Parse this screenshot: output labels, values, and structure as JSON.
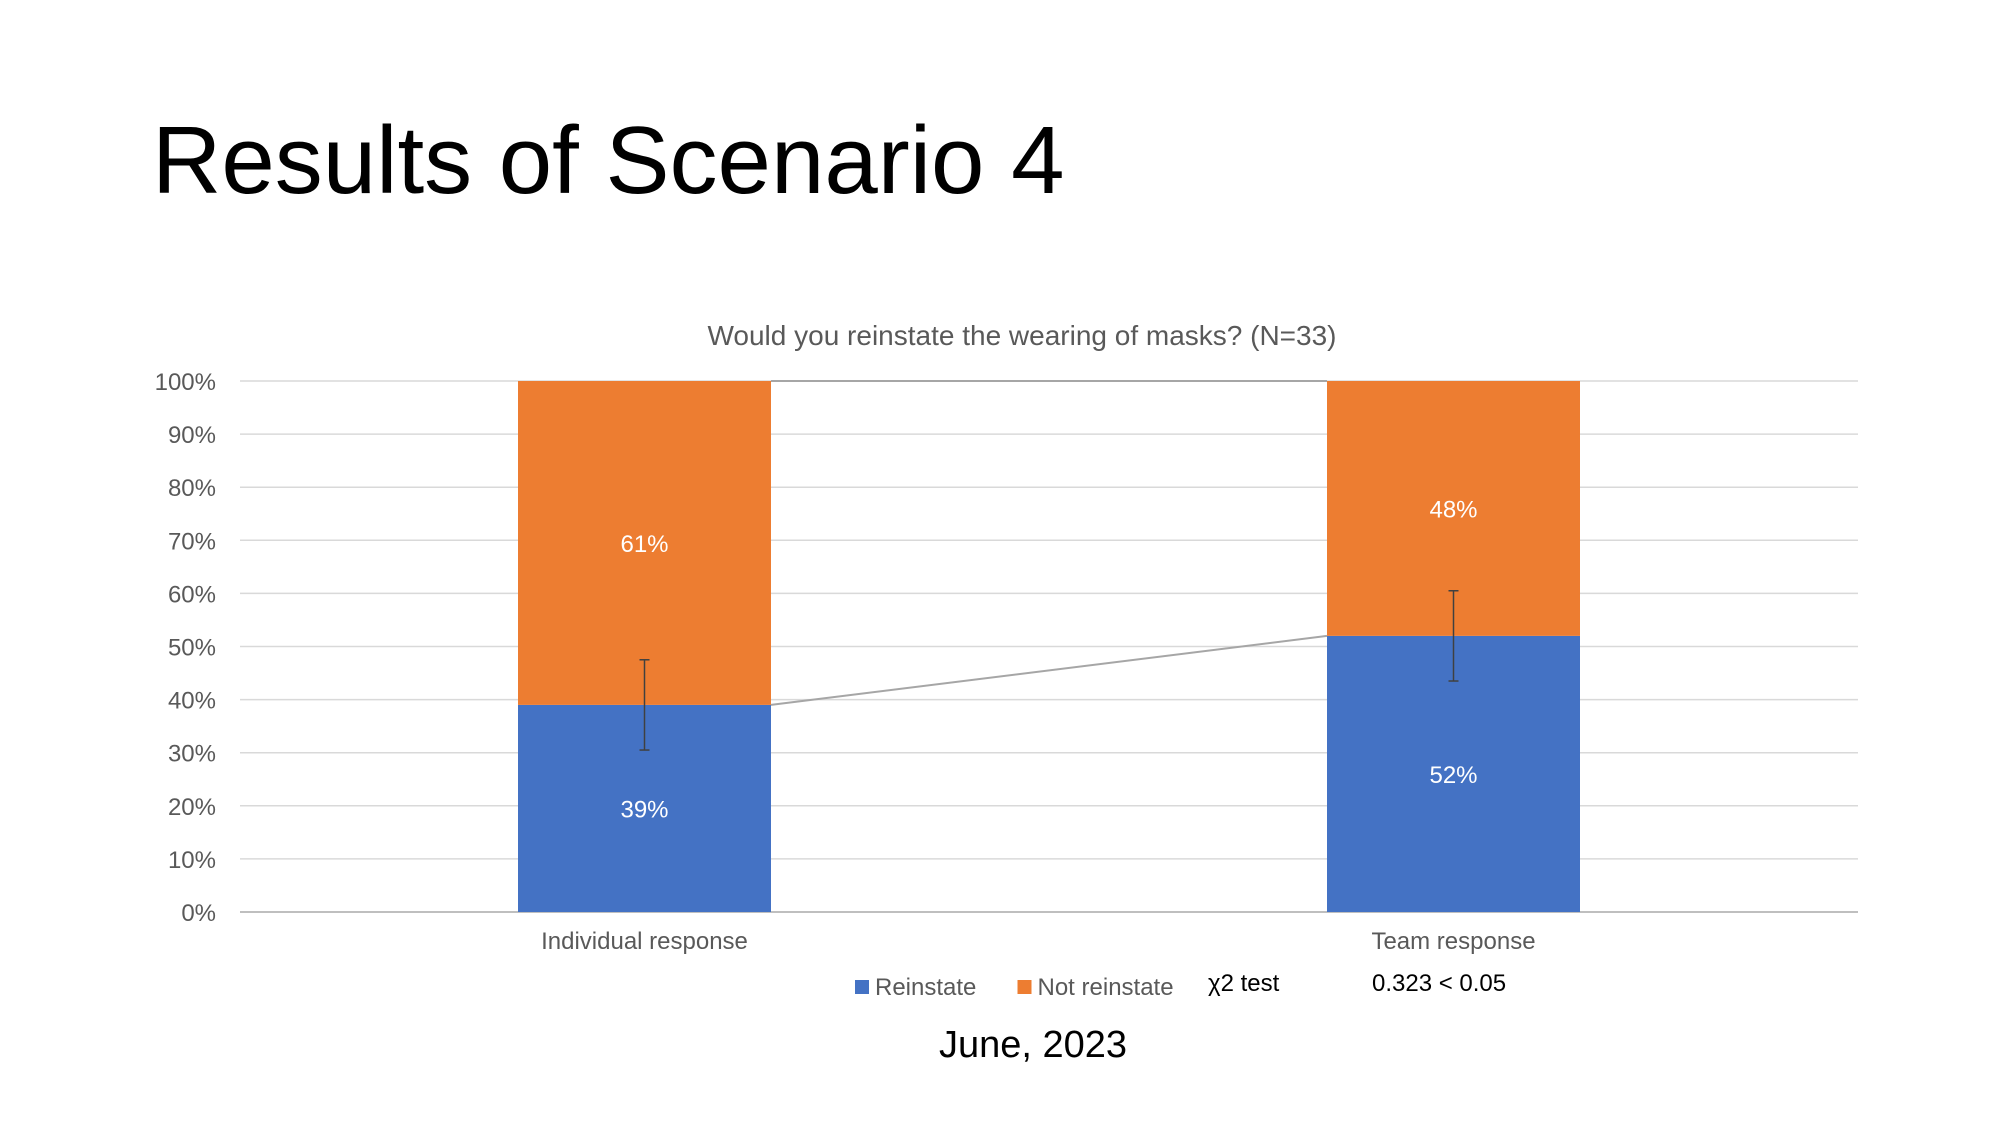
{
  "slide": {
    "title": "Results of Scenario 4",
    "footer": "June, 2023"
  },
  "stat_test": {
    "label": "χ2 test",
    "value": "0.323 < 0.05"
  },
  "chart_data": {
    "type": "bar",
    "stacked": true,
    "title": "Would you reinstate the wearing of masks? (N=33)",
    "categories": [
      "Individual response",
      "Team response"
    ],
    "series": [
      {
        "name": "Reinstate",
        "color": "#4472C4",
        "values": [
          39,
          52
        ],
        "labels": [
          "39%",
          "52%"
        ],
        "error": [
          8.5,
          8.5
        ]
      },
      {
        "name": "Not reinstate",
        "color": "#ED7D31",
        "values": [
          61,
          48
        ],
        "labels": [
          "61%",
          "48%"
        ]
      }
    ],
    "ylim": [
      0,
      100
    ],
    "yticks": [
      0,
      10,
      20,
      30,
      40,
      50,
      60,
      70,
      80,
      90,
      100
    ],
    "ytick_labels": [
      "0%",
      "10%",
      "20%",
      "30%",
      "40%",
      "50%",
      "60%",
      "70%",
      "80%",
      "90%",
      "100%"
    ],
    "grid": true,
    "legend": "bottom",
    "series_lines": true
  }
}
